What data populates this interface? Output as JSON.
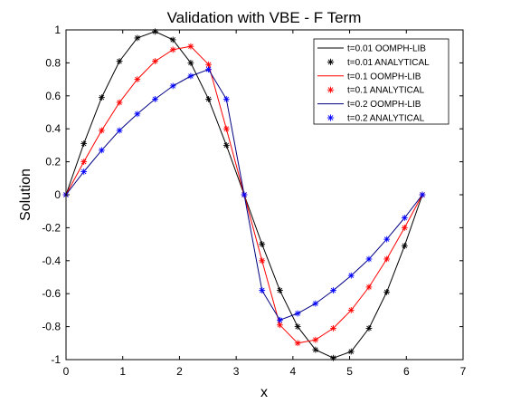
{
  "chart_data": {
    "type": "line",
    "title": "Validation with VBE - F Term",
    "xlabel": "x",
    "ylabel": "Solution",
    "xlim": [
      0,
      7
    ],
    "ylim": [
      -1,
      1
    ],
    "xticks": [
      "0",
      "1",
      "2",
      "3",
      "4",
      "5",
      "6",
      "7"
    ],
    "yticks": [
      "-1",
      "-0.8",
      "-0.6",
      "-0.4",
      "-0.2",
      "0",
      "0.2",
      "0.4",
      "0.6",
      "0.8",
      "1"
    ],
    "grid": false,
    "legend_position": "top-right",
    "x": [
      0.0,
      0.314,
      0.628,
      0.942,
      1.257,
      1.571,
      1.885,
      2.199,
      2.513,
      2.827,
      3.142,
      3.456,
      3.77,
      4.084,
      4.398,
      4.712,
      5.027,
      5.341,
      5.655,
      5.969,
      6.283
    ],
    "series": [
      {
        "name": "t=0.01 OOMPH-LIB",
        "style": "line",
        "color": "#000000",
        "values": [
          0.0,
          0.31,
          0.59,
          0.81,
          0.951,
          0.99,
          0.94,
          0.8,
          0.58,
          0.3,
          0.0,
          -0.3,
          -0.58,
          -0.8,
          -0.94,
          -0.99,
          -0.951,
          -0.81,
          -0.59,
          -0.31,
          0.0
        ]
      },
      {
        "name": "t=0.01 ANALYTICAL",
        "style": "marker",
        "color": "#000000",
        "values": [
          0.0,
          0.31,
          0.59,
          0.81,
          0.951,
          0.99,
          0.94,
          0.8,
          0.58,
          0.3,
          0.0,
          -0.3,
          -0.58,
          -0.8,
          -0.94,
          -0.99,
          -0.951,
          -0.81,
          -0.59,
          -0.31,
          0.0
        ]
      },
      {
        "name": "t=0.1 OOMPH-LIB",
        "style": "line",
        "color": "#ff0000",
        "values": [
          0.0,
          0.2,
          0.39,
          0.56,
          0.7,
          0.81,
          0.88,
          0.9,
          0.79,
          0.4,
          0.0,
          -0.4,
          -0.79,
          -0.9,
          -0.88,
          -0.81,
          -0.7,
          -0.56,
          -0.39,
          -0.2,
          0.0
        ]
      },
      {
        "name": "t=0.1 ANALYTICAL",
        "style": "marker",
        "color": "#ff0000",
        "values": [
          0.0,
          0.2,
          0.39,
          0.56,
          0.7,
          0.81,
          0.88,
          0.9,
          0.79,
          0.4,
          0.0,
          -0.4,
          -0.79,
          -0.9,
          -0.88,
          -0.81,
          -0.7,
          -0.56,
          -0.39,
          -0.2,
          0.0
        ]
      },
      {
        "name": "t=0.2 OOMPH-LIB",
        "style": "line",
        "color": "#000080",
        "values": [
          0.0,
          0.14,
          0.27,
          0.39,
          0.49,
          0.58,
          0.66,
          0.72,
          0.76,
          0.58,
          0.0,
          -0.58,
          -0.76,
          -0.72,
          -0.66,
          -0.58,
          -0.49,
          -0.39,
          -0.27,
          -0.14,
          0.0
        ]
      },
      {
        "name": "t=0.2 ANALYTICAL",
        "style": "marker",
        "color": "#0000ff",
        "values": [
          0.0,
          0.14,
          0.27,
          0.39,
          0.49,
          0.58,
          0.66,
          0.72,
          0.76,
          0.58,
          0.0,
          -0.58,
          -0.76,
          -0.72,
          -0.66,
          -0.58,
          -0.49,
          -0.39,
          -0.27,
          -0.14,
          0.0
        ]
      }
    ]
  }
}
